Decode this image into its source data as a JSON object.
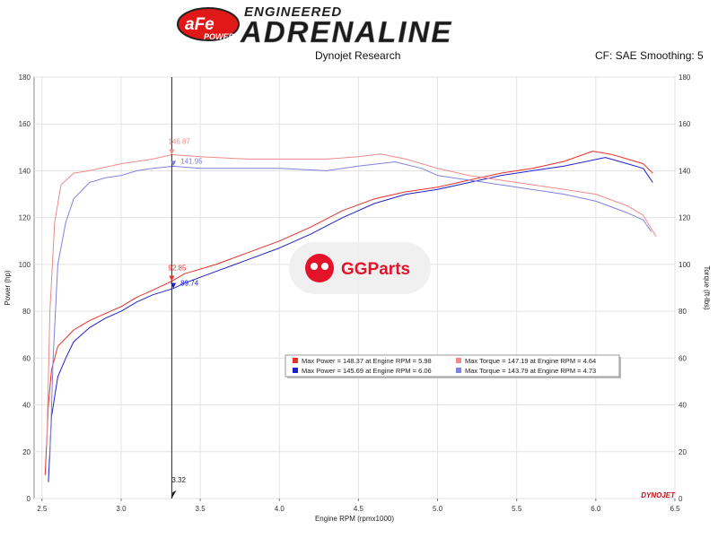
{
  "header": {
    "logo_text": "aFe",
    "logo_sub": "POWER",
    "brand_top": "ENGINEERED",
    "brand_main": "ADRENALINE",
    "left_caption": "Dynojet Research",
    "right_caption": "CF: SAE Smoothing: 5"
  },
  "watermark": {
    "text": "GGParts"
  },
  "footer_mark": "DYNOJET",
  "chart_data": {
    "type": "line",
    "xlabel": "Engine RPM (rpmx1000)",
    "ylabel_left": "Power (hp)",
    "ylabel_right": "Torque (ft-lbs)",
    "xlim": [
      2.45,
      6.5
    ],
    "ylim": [
      0,
      180
    ],
    "xticks": [
      2.5,
      3.0,
      3.5,
      4.0,
      4.5,
      5.0,
      5.5,
      6.0,
      6.5
    ],
    "yticks": [
      0,
      20,
      40,
      60,
      80,
      100,
      120,
      140,
      160,
      180
    ],
    "grid": true,
    "cursor": {
      "x": 3.32,
      "label": "3.32"
    },
    "series": [
      {
        "role": "power-red",
        "color": "#e8302a",
        "x": [
          2.52,
          2.54,
          2.56,
          2.6,
          2.7,
          2.8,
          2.9,
          3.0,
          3.1,
          3.2,
          3.32,
          3.4,
          3.6,
          3.8,
          4.0,
          4.2,
          4.4,
          4.6,
          4.8,
          5.0,
          5.2,
          5.4,
          5.6,
          5.8,
          5.98,
          6.1,
          6.2,
          6.3,
          6.36
        ],
        "y": [
          10,
          40,
          55,
          65,
          72,
          76,
          79,
          82,
          86,
          89,
          92.85,
          96,
          100,
          105,
          110,
          116,
          123,
          128,
          131,
          133,
          136,
          139,
          141,
          144,
          148.37,
          147,
          145,
          143,
          139
        ]
      },
      {
        "role": "power-blue",
        "color": "#2020c8",
        "x": [
          2.54,
          2.56,
          2.6,
          2.65,
          2.7,
          2.8,
          2.9,
          3.0,
          3.1,
          3.2,
          3.33,
          3.4,
          3.6,
          3.8,
          4.0,
          4.2,
          4.4,
          4.6,
          4.8,
          5.0,
          5.2,
          5.4,
          5.6,
          5.8,
          6.06,
          6.2,
          6.3,
          6.36
        ],
        "y": [
          7,
          35,
          52,
          60,
          67,
          73,
          77,
          80,
          84,
          87,
          89.74,
          92,
          97,
          102,
          107,
          113,
          120,
          126,
          130,
          132,
          135,
          138,
          140,
          142,
          145.69,
          143,
          141,
          135
        ]
      },
      {
        "role": "torque-red",
        "color": "#f08a8a",
        "x": [
          2.53,
          2.55,
          2.58,
          2.62,
          2.7,
          2.8,
          3.0,
          3.1,
          3.2,
          3.32,
          3.5,
          3.8,
          4.0,
          4.3,
          4.5,
          4.64,
          4.8,
          5.0,
          5.2,
          5.5,
          5.8,
          6.0,
          6.2,
          6.3,
          6.38
        ],
        "y": [
          22,
          80,
          118,
          134,
          139,
          140,
          143,
          144,
          145,
          146.87,
          146,
          145,
          145,
          145,
          146,
          147.19,
          145,
          141,
          138,
          135,
          132,
          130,
          125,
          121,
          112
        ]
      },
      {
        "role": "torque-blue",
        "color": "#8080e0",
        "x": [
          2.55,
          2.57,
          2.6,
          2.65,
          2.7,
          2.8,
          2.9,
          3.0,
          3.1,
          3.2,
          3.33,
          3.5,
          3.8,
          4.0,
          4.3,
          4.5,
          4.73,
          4.9,
          5.0,
          5.2,
          5.5,
          5.8,
          6.0,
          6.2,
          6.3,
          6.35
        ],
        "y": [
          18,
          60,
          100,
          118,
          128,
          135,
          137,
          138,
          140,
          141,
          141.95,
          141,
          141,
          141,
          140,
          142,
          143.79,
          141,
          138,
          136,
          133,
          130,
          127,
          122,
          119,
          114
        ]
      }
    ],
    "point_labels": [
      {
        "x": 3.32,
        "y": 146.87,
        "text": "146.87",
        "color": "#f08a8a",
        "side": "above"
      },
      {
        "x": 3.33,
        "y": 141.95,
        "text": "141.95",
        "color": "#8080e0",
        "side": "right"
      },
      {
        "x": 3.32,
        "y": 92.85,
        "text": "92.85",
        "color": "#e8302a",
        "side": "above"
      },
      {
        "x": 3.33,
        "y": 89.74,
        "text": "89.74",
        "color": "#2020c8",
        "side": "right"
      }
    ],
    "legend": {
      "placement": "center-right",
      "entries": [
        {
          "text": "Max Power = 148.37 at Engine RPM = 5.98",
          "color": "#e8302a"
        },
        {
          "text": "Max Torque = 147.19 at Engine RPM = 4.64",
          "color": "#f08a8a"
        },
        {
          "text": "Max Power = 145.69 at Engine RPM = 6.06",
          "color": "#2020c8"
        },
        {
          "text": "Max Torque = 143.79 at Engine RPM = 4.73",
          "color": "#8080e0"
        }
      ]
    }
  }
}
